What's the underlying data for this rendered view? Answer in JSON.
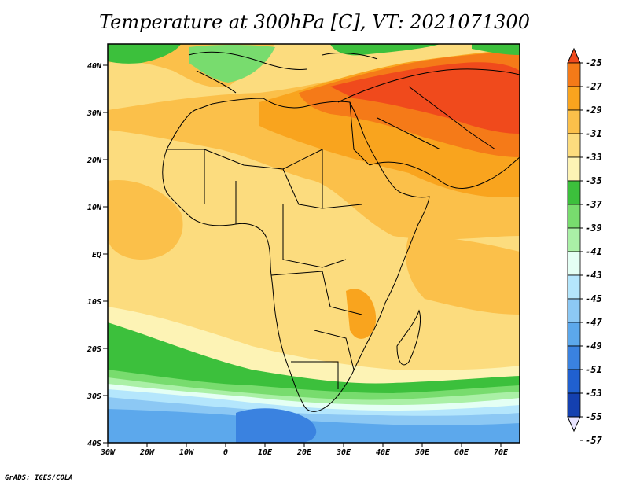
{
  "title": "Temperature at 300hPa [C], VT: 2021071300",
  "credit": "GrADS: IGES/COLA",
  "map": {
    "lat_labels": [
      "40N",
      "30N",
      "20N",
      "10N",
      "EQ",
      "10S",
      "20S",
      "30S",
      "40S"
    ],
    "lon_labels": [
      "30W",
      "20W",
      "10W",
      "0",
      "10E",
      "20E",
      "30E",
      "40E",
      "50E",
      "60E",
      "70E"
    ]
  },
  "colorbar": {
    "labels": [
      "-25",
      "-27",
      "-29",
      "-31",
      "-33",
      "-35",
      "-37",
      "-39",
      "-41",
      "-43",
      "-45",
      "-47",
      "-49",
      "-51",
      "-53",
      "-55",
      "-57"
    ],
    "colors": [
      "#f04a1c",
      "#f57a18",
      "#f9a41e",
      "#fbc04a",
      "#fcdc7e",
      "#fdf3b5",
      "#3cc03c",
      "#78dc6e",
      "#aaf0a6",
      "#e4fff4",
      "#b4e6fc",
      "#8cc8f4",
      "#5ca8ec",
      "#3a82e0",
      "#2060d0",
      "#1440b0",
      "#0c1c7c"
    ]
  },
  "colors": {
    "hot": "#f04a1c",
    "warm": "#f9a41e",
    "mild": "#fcdc7e",
    "pale": "#fdf3b5",
    "green": "#3cc03c",
    "cold": "#5ca8ec"
  }
}
